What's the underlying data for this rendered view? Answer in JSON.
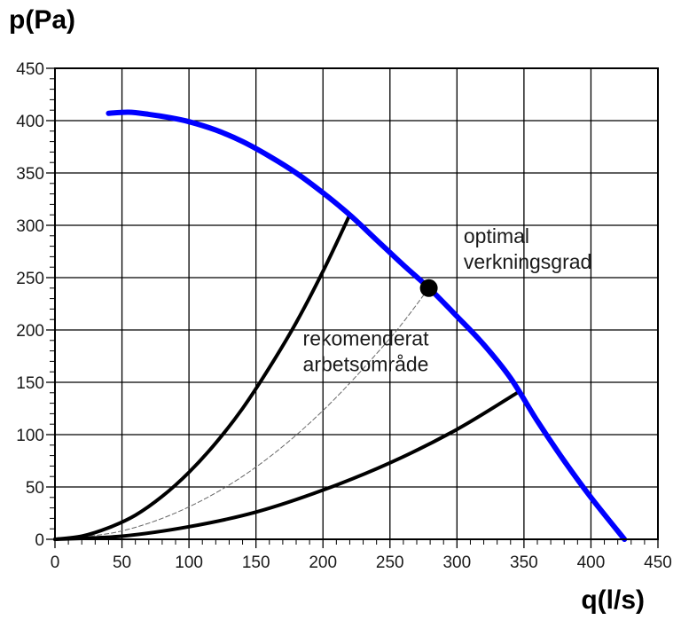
{
  "chart_data": {
    "type": "line",
    "xlabel": "q(l/s)",
    "ylabel": "p(Pa)",
    "xlim": [
      0,
      450
    ],
    "ylim": [
      0,
      450
    ],
    "x_ticks": [
      0,
      50,
      100,
      150,
      200,
      250,
      300,
      350,
      400,
      450
    ],
    "y_ticks": [
      0,
      50,
      100,
      150,
      200,
      250,
      300,
      350,
      400,
      450
    ],
    "grid": true,
    "colors": {
      "fan_curve": "#0000ff",
      "system_curve": "#000000",
      "optimal_curve": "#666666"
    },
    "series": [
      {
        "x": [
          40,
          55,
          70,
          85,
          100,
          120,
          140,
          160,
          180,
          200,
          220,
          240,
          260,
          280,
          300,
          320,
          340,
          360,
          380,
          400,
          425
        ],
        "y": [
          407,
          408,
          406,
          403,
          399,
          391,
          380,
          366,
          350,
          331,
          310,
          286,
          262,
          239,
          213,
          186,
          154,
          113,
          75,
          40,
          0
        ]
      },
      {
        "x": [
          0,
          20,
          40,
          60,
          80,
          100,
          120,
          140,
          160,
          180,
          200,
          220
        ],
        "y": [
          0,
          3,
          11,
          23,
          41,
          64,
          92,
          125,
          164,
          207,
          256,
          310
        ]
      },
      {
        "x": [
          0,
          50,
          100,
          150,
          200,
          250,
          300,
          345
        ],
        "y": [
          0,
          3,
          12,
          26,
          47,
          73,
          105,
          140
        ]
      },
      {
        "x": [
          0,
          50,
          100,
          150,
          200,
          250,
          279
        ],
        "y": [
          0,
          8,
          31,
          69,
          123,
          192,
          240
        ]
      }
    ],
    "markers": [
      {
        "x": 279,
        "y": 240
      }
    ],
    "annotations": [
      {
        "lines": [
          "optimal",
          "verkningsgrad"
        ],
        "x": 305,
        "y": 283
      },
      {
        "lines": [
          "rekomenderat",
          "arbetsområde"
        ],
        "x": 185,
        "y": 185
      }
    ]
  }
}
